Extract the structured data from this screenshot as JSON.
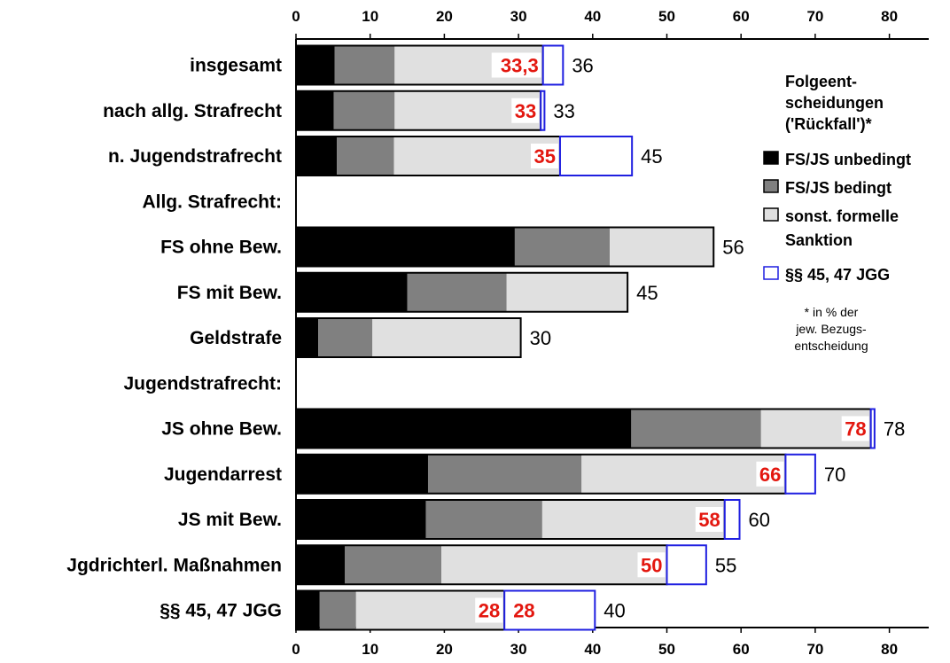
{
  "chart_data": {
    "type": "bar",
    "orientation": "horizontal",
    "stacked": true,
    "xlim": [
      0,
      85
    ],
    "x_ticks": [
      0,
      10,
      20,
      30,
      40,
      50,
      60,
      70,
      80
    ],
    "grid": false,
    "categories": [
      "insgesamt",
      "nach allg. Strafrecht",
      "n. Jugendstrafrecht",
      "Allg. Strafrecht:",
      "FS ohne Bew.",
      "FS mit Bew.",
      "Geldstrafe",
      "Jugendstrafrecht:",
      "JS ohne Bew.",
      "Jugendarrest",
      "JS mit Bew.",
      "Jgdrichterl. Maßnahmen",
      "§§ 45, 47 JGG"
    ],
    "series": [
      {
        "name": "FS/JS unbedingt",
        "color": "#000000",
        "values": [
          5.2,
          5.1,
          5.5,
          null,
          29.5,
          15.0,
          3.0,
          null,
          45.2,
          17.8,
          17.5,
          6.6,
          3.2
        ]
      },
      {
        "name": "FS/JS bedingt",
        "color": "#808080",
        "values": [
          8.1,
          8.2,
          7.7,
          null,
          12.8,
          13.4,
          7.3,
          null,
          17.5,
          20.7,
          15.7,
          13.0,
          4.9
        ]
      },
      {
        "name": "sonst. formelle Sanktion",
        "color": "#e0e0e0",
        "values": [
          20.0,
          19.7,
          22.4,
          null,
          14.0,
          16.3,
          20.0,
          null,
          14.8,
          27.5,
          24.6,
          30.4,
          20.0
        ]
      },
      {
        "name": "§§ 45, 47 JGG",
        "color": "#ffffff",
        "border": "#1f1fe0",
        "values": [
          2.7,
          0.5,
          9.7,
          null,
          0,
          0,
          0,
          null,
          0.5,
          4.0,
          2.0,
          5.3,
          12.2
        ]
      }
    ],
    "totals": [
      "36",
      "33",
      "45",
      null,
      "56",
      "45",
      "30",
      null,
      "78",
      "70",
      "60",
      "55",
      "40"
    ],
    "formal_labels": [
      {
        "row": 0,
        "text": "33,3"
      },
      {
        "row": 1,
        "text": "33"
      },
      {
        "row": 2,
        "text": "35"
      },
      {
        "row": 8,
        "text": "78"
      },
      {
        "row": 9,
        "text": "66"
      },
      {
        "row": 10,
        "text": "58"
      },
      {
        "row": 11,
        "text": "50"
      },
      {
        "row": 12,
        "text": "28"
      }
    ],
    "jgg_labels": [
      {
        "row": 12,
        "text": "28"
      }
    ],
    "legend": {
      "placement": "right",
      "title": [
        "Folgeent-",
        "scheidungen",
        "('Rückfall')*"
      ],
      "items": [
        [
          "FS/JS unbedingt"
        ],
        [
          "FS/JS bedingt"
        ],
        [
          "sonst. formelle",
          "Sanktion"
        ],
        [
          "§§ 45, 47 JGG"
        ]
      ],
      "note": [
        "* in % der",
        "jew. Bezugs-",
        "entscheidung"
      ]
    }
  }
}
